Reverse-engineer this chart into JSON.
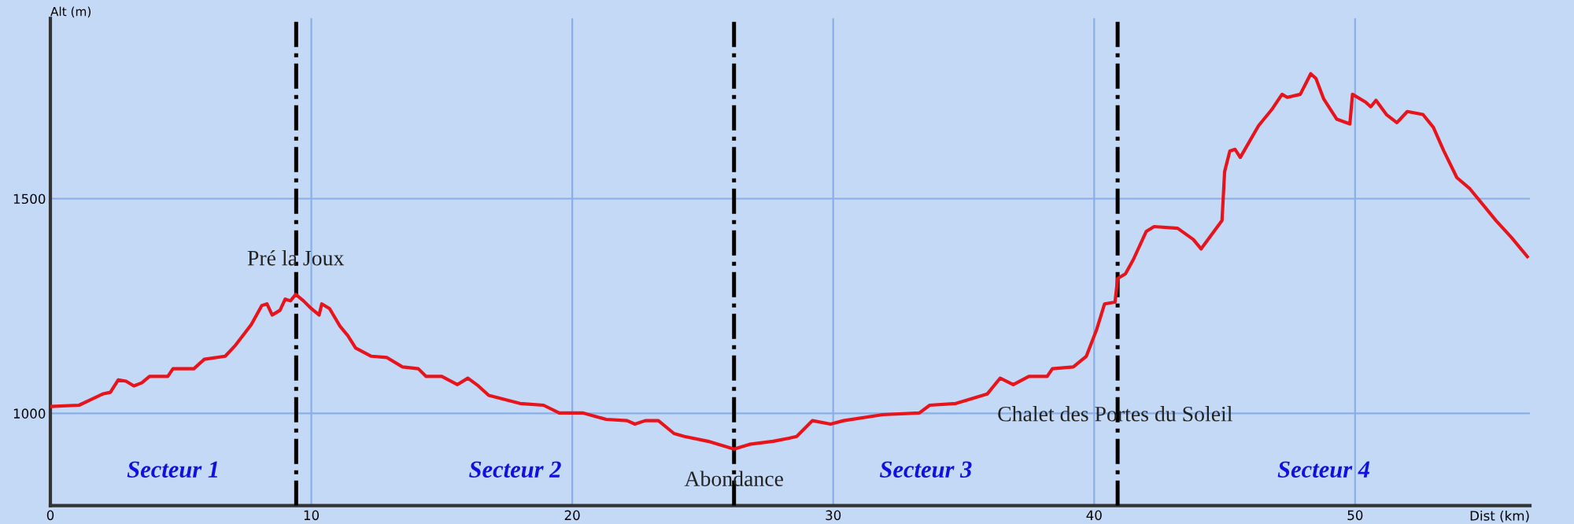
{
  "chart_data": {
    "type": "line",
    "xlabel": "Dist (km)",
    "ylabel": "Alt (m)",
    "xlim": [
      0,
      56.7
    ],
    "ylim": [
      785,
      1920
    ],
    "xticks": [
      0,
      10,
      20,
      30,
      40,
      50
    ],
    "yticks": [
      1000,
      1500
    ],
    "grid": true,
    "line_style": "solid",
    "marker": "none",
    "series": [
      {
        "color": "#e8141c",
        "x": [
          0,
          1.1,
          2.0,
          2.3,
          2.6,
          2.9,
          3.2,
          3.5,
          3.8,
          4.5,
          4.7,
          5.5,
          5.9,
          6.7,
          7.1,
          7.7,
          8.1,
          8.3,
          8.5,
          8.8,
          9.0,
          9.2,
          9.4,
          9.7,
          10.0,
          10.3,
          10.4,
          10.7,
          11.1,
          11.4,
          11.7,
          12.3,
          12.9,
          13.5,
          14.1,
          14.4,
          15.0,
          15.6,
          16.0,
          16.4,
          16.8,
          18.0,
          18.9,
          19.5,
          20.4,
          21.3,
          22.1,
          22.4,
          22.8,
          23.3,
          23.9,
          24.3,
          25.2,
          26.2,
          26.8,
          27.7,
          28.3,
          28.6,
          29.2,
          29.9,
          30.4,
          31.9,
          33.3,
          33.7,
          34.7,
          35.9,
          36.4,
          36.9,
          37.5,
          38.2,
          38.4,
          39.2,
          39.7,
          40.1,
          40.4,
          40.8,
          40.9,
          41.2,
          41.5,
          42.0,
          42.3,
          43.2,
          43.8,
          44.1,
          44.9,
          45.0,
          45.2,
          45.4,
          45.6,
          46.3,
          46.8,
          47.2,
          47.4,
          47.9,
          48.3,
          48.5,
          48.8,
          49.3,
          49.8,
          49.9,
          50.4,
          50.6,
          50.8,
          51.2,
          51.6,
          52.0,
          52.6,
          53.0,
          53.4,
          53.9,
          54.4,
          55.4,
          56.0,
          56.6
        ],
        "values": [
          1016,
          1019,
          1045,
          1049,
          1078,
          1075,
          1064,
          1071,
          1086,
          1086,
          1104,
          1104,
          1126,
          1133,
          1159,
          1207,
          1251,
          1255,
          1229,
          1240,
          1266,
          1262,
          1277,
          1262,
          1244,
          1229,
          1255,
          1244,
          1203,
          1181,
          1152,
          1133,
          1130,
          1108,
          1104,
          1086,
          1086,
          1067,
          1082,
          1064,
          1042,
          1023,
          1019,
          1001,
          1001,
          986,
          983,
          975,
          983,
          983,
          953,
          946,
          935,
          917,
          928,
          935,
          942,
          946,
          983,
          975,
          983,
          997,
          1001,
          1019,
          1023,
          1045,
          1082,
          1067,
          1086,
          1086,
          1104,
          1108,
          1133,
          1196,
          1255,
          1259,
          1314,
          1325,
          1358,
          1424,
          1435,
          1431,
          1405,
          1383,
          1449,
          1563,
          1611,
          1615,
          1596,
          1670,
          1707,
          1743,
          1736,
          1743,
          1791,
          1780,
          1732,
          1685,
          1674,
          1743,
          1725,
          1714,
          1729,
          1696,
          1677,
          1703,
          1696,
          1666,
          1611,
          1549,
          1523,
          1449,
          1409,
          1365
        ]
      }
    ],
    "ref_lines": [
      {
        "axis": "x",
        "value": 9.42,
        "color": "#000000",
        "line_style": "dashdot"
      },
      {
        "axis": "x",
        "value": 26.2,
        "color": "#000000",
        "line_style": "dashdot"
      },
      {
        "axis": "x",
        "value": 40.9,
        "color": "#000000",
        "line_style": "dashdot"
      }
    ],
    "annotations": [
      {
        "text": "Pré la Joux",
        "x": 9.4,
        "y": 1357
      },
      {
        "text": "Abondance",
        "x": 26.2,
        "y": 843
      },
      {
        "text": "Chalet des Portes du Soleil",
        "x": 40.8,
        "y": 994
      },
      "Secteur 1",
      "Secteur 2",
      "Secteur 3",
      "Secteur 4"
    ]
  }
}
